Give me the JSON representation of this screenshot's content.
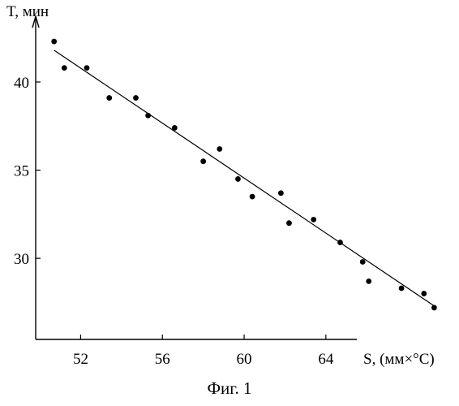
{
  "caption": "Фиг. 1",
  "chart_data": {
    "type": "scatter",
    "title": "",
    "xlabel": "S, (мм×°C)",
    "ylabel": "T, мин",
    "xlim": [
      49.8,
      69.8
    ],
    "ylim": [
      25.4,
      43.5
    ],
    "x_ticks": [
      52,
      56,
      60,
      64
    ],
    "y_ticks": [
      30,
      35,
      40
    ],
    "grid": false,
    "legend": "none",
    "series": [
      {
        "points": [
          {
            "x": 50.7,
            "y": 42.3
          },
          {
            "x": 51.2,
            "y": 40.8
          },
          {
            "x": 52.3,
            "y": 40.8
          },
          {
            "x": 53.4,
            "y": 39.1
          },
          {
            "x": 54.7,
            "y": 39.1
          },
          {
            "x": 55.3,
            "y": 38.1
          },
          {
            "x": 56.6,
            "y": 37.4
          },
          {
            "x": 58.0,
            "y": 35.5
          },
          {
            "x": 58.8,
            "y": 36.2
          },
          {
            "x": 59.7,
            "y": 34.5
          },
          {
            "x": 60.4,
            "y": 33.5
          },
          {
            "x": 61.8,
            "y": 33.7
          },
          {
            "x": 62.2,
            "y": 32.0
          },
          {
            "x": 63.4,
            "y": 32.2
          },
          {
            "x": 64.7,
            "y": 30.9
          },
          {
            "x": 65.8,
            "y": 29.8
          },
          {
            "x": 66.1,
            "y": 28.7
          },
          {
            "x": 67.7,
            "y": 28.3
          },
          {
            "x": 68.8,
            "y": 28.0
          },
          {
            "x": 69.3,
            "y": 27.2
          }
        ]
      }
    ],
    "trendline": {
      "x": [
        50.7,
        69.3
      ],
      "y": [
        41.8,
        27.3
      ]
    }
  }
}
